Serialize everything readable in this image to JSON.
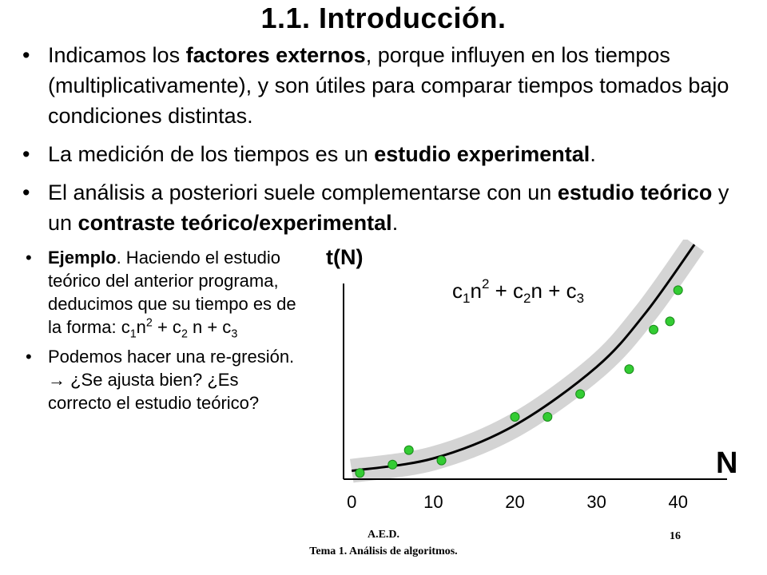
{
  "slide": {
    "title": "1.1. Introducción.",
    "bullet_glyph": "•",
    "bullets": [
      {
        "p1": "Indicamos los ",
        "b1": "factores externos",
        "p2": ", porque influyen en los tiempos (multiplicativamente), y son útiles para comparar tiempos tomados bajo condiciones distintas."
      },
      {
        "p1": "La medición de los tiempos es un ",
        "b1": "estudio experimental",
        "p2": "."
      },
      {
        "p1": "El análisis a posteriori suele complementarse con un ",
        "b1": "estudio teórico",
        "p2": " y un ",
        "b2": "contraste teórico/experimental",
        "p3": "."
      }
    ],
    "example": {
      "label": "Ejemplo",
      "text": ". Haciendo el estudio teórico del anterior programa, deducimos que su tiempo es de la forma: ",
      "formula": {
        "c1": "c",
        "s1": "1",
        "n1": "n",
        "e1": "2",
        "mid1": " + c",
        "s2": "2",
        "mid2": " n + c",
        "s3": "3"
      }
    },
    "regression": {
      "text1": "Podemos hacer una re-gresión. ",
      "arrow": "→",
      "text2": " ¿Se ajusta bien? ¿Es correcto el estudio teórico?"
    }
  },
  "chart_data": {
    "type": "scatter",
    "ylabel": "t(N)",
    "xlabel": "N",
    "x_ticks": [
      "0",
      "10",
      "20",
      "30",
      "40"
    ],
    "xlim": [
      -1,
      46
    ],
    "ylim": [
      0,
      100
    ],
    "grid": false,
    "curve_label": {
      "c1": "c",
      "s1": "1",
      "n": "n",
      "e": "2",
      "plus1": " + c",
      "s2": "2",
      "n2": "n + c",
      "s3": "3"
    },
    "fit_curve": [
      [
        0,
        4
      ],
      [
        10,
        10
      ],
      [
        20,
        26
      ],
      [
        30,
        54
      ],
      [
        36,
        80
      ],
      [
        42,
        113
      ]
    ],
    "points": [
      {
        "x": 1,
        "y": 3
      },
      {
        "x": 5,
        "y": 7
      },
      {
        "x": 7,
        "y": 14
      },
      {
        "x": 11,
        "y": 9
      },
      {
        "x": 20,
        "y": 30
      },
      {
        "x": 24,
        "y": 30
      },
      {
        "x": 28,
        "y": 41
      },
      {
        "x": 34,
        "y": 53
      },
      {
        "x": 37,
        "y": 72
      },
      {
        "x": 39,
        "y": 76
      },
      {
        "x": 40,
        "y": 91
      }
    ],
    "colors": {
      "points": "#33cc33",
      "band": "#d4d4d4",
      "curve": "#000000"
    }
  },
  "footer": {
    "course": "A.E.D.",
    "subtitle": "Tema 1. Análisis de algoritmos.",
    "page": "16"
  }
}
